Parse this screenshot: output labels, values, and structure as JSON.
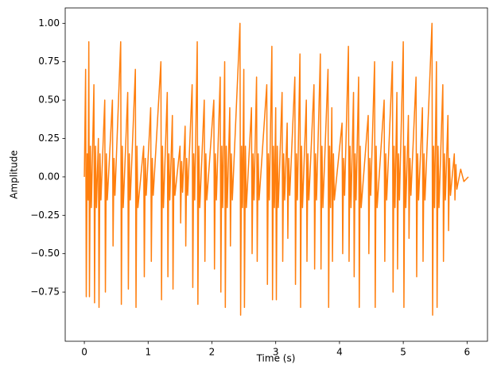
{
  "chart_data": {
    "type": "line",
    "xlabel": "Time (s)",
    "ylabel": "Amplitude",
    "x": [
      0,
      0.02,
      0.03,
      0.045,
      0.06,
      0.07,
      0.08,
      0.095,
      0.11,
      0.15,
      0.16,
      0.175,
      0.19,
      0.22,
      0.23,
      0.245,
      0.26,
      0.32,
      0.33,
      0.345,
      0.36,
      0.44,
      0.45,
      0.465,
      0.48,
      0.57,
      0.58,
      0.595,
      0.61,
      0.68,
      0.69,
      0.705,
      0.72,
      0.8,
      0.81,
      0.825,
      0.84,
      0.93,
      0.94,
      0.955,
      0.97,
      1.04,
      1.05,
      1.065,
      1.08,
      1.2,
      1.21,
      1.225,
      1.24,
      1.3,
      1.31,
      1.325,
      1.34,
      1.38,
      1.39,
      1.405,
      1.42,
      1.5,
      1.51,
      1.525,
      1.54,
      1.58,
      1.59,
      1.605,
      1.62,
      1.69,
      1.7,
      1.715,
      1.73,
      1.77,
      1.78,
      1.795,
      1.81,
      1.88,
      1.89,
      1.905,
      1.92,
      2.03,
      2.04,
      2.055,
      2.07,
      2.13,
      2.14,
      2.155,
      2.17,
      2.2,
      2.21,
      2.225,
      2.24,
      2.28,
      2.29,
      2.305,
      2.32,
      2.44,
      2.45,
      2.465,
      2.48,
      2.5,
      2.51,
      2.525,
      2.54,
      2.62,
      2.63,
      2.645,
      2.66,
      2.7,
      2.71,
      2.725,
      2.74,
      2.86,
      2.87,
      2.885,
      2.9,
      2.94,
      2.95,
      2.965,
      2.98,
      3.0,
      3.01,
      3.025,
      3.04,
      3.1,
      3.11,
      3.125,
      3.14,
      3.18,
      3.19,
      3.205,
      3.22,
      3.3,
      3.31,
      3.325,
      3.34,
      3.38,
      3.39,
      3.405,
      3.42,
      3.48,
      3.49,
      3.505,
      3.52,
      3.6,
      3.61,
      3.625,
      3.64,
      3.7,
      3.71,
      3.725,
      3.74,
      3.82,
      3.83,
      3.845,
      3.86,
      3.88,
      3.89,
      3.905,
      3.92,
      4.04,
      4.05,
      4.065,
      4.08,
      4.14,
      4.15,
      4.165,
      4.18,
      4.22,
      4.23,
      4.245,
      4.26,
      4.3,
      4.31,
      4.325,
      4.34,
      4.45,
      4.46,
      4.475,
      4.49,
      4.55,
      4.56,
      4.575,
      4.59,
      4.7,
      4.71,
      4.725,
      4.74,
      4.83,
      4.84,
      4.855,
      4.87,
      4.9,
      4.91,
      4.925,
      4.94,
      5.0,
      5.01,
      5.025,
      5.04,
      5.08,
      5.09,
      5.105,
      5.12,
      5.2,
      5.21,
      5.225,
      5.24,
      5.3,
      5.31,
      5.325,
      5.34,
      5.45,
      5.46,
      5.475,
      5.49,
      5.52,
      5.53,
      5.545,
      5.56,
      5.62,
      5.63,
      5.645,
      5.66,
      5.7,
      5.71,
      5.725,
      5.74,
      5.8,
      5.81,
      5.825,
      5.84,
      5.9,
      5.95,
      6.02
    ],
    "series": [
      {
        "color": "#ff7f0e",
        "values": [
          0,
          0.7,
          -0.78,
          0.15,
          -0.15,
          0.88,
          -0.78,
          0.2,
          -0.2,
          0.6,
          -0.82,
          0.2,
          -0.2,
          0.25,
          -0.85,
          0.15,
          -0.15,
          0.5,
          -0.75,
          0.15,
          -0.15,
          0.5,
          -0.45,
          0.12,
          -0.12,
          0.88,
          -0.83,
          0.2,
          -0.2,
          0.55,
          -0.73,
          0.15,
          -0.15,
          0.7,
          -0.85,
          0.2,
          -0.2,
          0.2,
          -0.65,
          0.12,
          -0.12,
          0.45,
          -0.55,
          0.12,
          -0.12,
          0.75,
          -0.8,
          0.2,
          -0.2,
          0.55,
          -0.65,
          0.15,
          -0.15,
          0.4,
          -0.73,
          0.12,
          -0.12,
          0.2,
          -0.3,
          0.1,
          -0.1,
          0.33,
          -0.45,
          0.12,
          -0.12,
          0.6,
          -0.72,
          0.15,
          -0.15,
          0.88,
          -0.83,
          0.2,
          -0.2,
          0.5,
          -0.55,
          0.15,
          -0.15,
          0.5,
          -0.6,
          0.15,
          -0.15,
          0.65,
          -0.75,
          0.2,
          -0.2,
          0.75,
          -0.85,
          0.2,
          -0.2,
          0.45,
          -0.45,
          0.15,
          -0.15,
          1.0,
          -0.9,
          0.2,
          -0.2,
          0.7,
          -0.85,
          0.2,
          -0.2,
          0.45,
          -0.5,
          0.15,
          -0.15,
          0.65,
          -0.55,
          0.15,
          -0.15,
          0.6,
          -0.7,
          0.15,
          -0.15,
          0.85,
          -0.8,
          0.2,
          -0.2,
          0.45,
          -0.8,
          0.2,
          -0.2,
          0.55,
          -0.55,
          0.15,
          -0.15,
          0.35,
          -0.4,
          0.12,
          -0.12,
          0.65,
          -0.7,
          0.15,
          -0.15,
          0.8,
          -0.85,
          0.2,
          -0.2,
          0.5,
          -0.55,
          0.15,
          -0.15,
          0.6,
          -0.6,
          0.15,
          -0.15,
          0.8,
          -0.6,
          0.2,
          -0.2,
          0.7,
          -0.85,
          0.2,
          -0.2,
          0.45,
          -0.55,
          0.15,
          -0.15,
          0.35,
          -0.5,
          0.12,
          -0.12,
          0.85,
          -0.55,
          0.2,
          -0.2,
          0.55,
          -0.65,
          0.15,
          -0.15,
          0.65,
          -0.85,
          0.2,
          -0.2,
          0.4,
          -0.5,
          0.12,
          -0.12,
          0.75,
          -0.85,
          0.2,
          -0.2,
          0.5,
          -0.55,
          0.15,
          -0.15,
          0.75,
          -0.75,
          0.2,
          -0.2,
          0.55,
          -0.6,
          0.15,
          -0.15,
          0.88,
          -0.85,
          0.2,
          -0.2,
          0.4,
          -0.4,
          0.12,
          -0.12,
          0.65,
          -0.65,
          0.15,
          -0.15,
          0.45,
          -0.55,
          0.15,
          -0.15,
          1.0,
          -0.9,
          0.2,
          -0.2,
          0.75,
          -0.85,
          0.2,
          -0.2,
          0.6,
          -0.55,
          0.15,
          -0.15,
          0.4,
          -0.35,
          0.12,
          -0.12,
          0.15,
          -0.15,
          0.08,
          -0.08,
          0.05,
          -0.03,
          0
        ]
      }
    ],
    "xlim": [
      -0.3,
      6.32
    ],
    "ylim": [
      -1.07,
      1.1
    ],
    "xticks": [
      0,
      1,
      2,
      3,
      4,
      5,
      6
    ],
    "yticks": [
      {
        "value": -0.75,
        "label": "−0.75"
      },
      {
        "value": -0.5,
        "label": "−0.50"
      },
      {
        "value": -0.25,
        "label": "−0.25"
      },
      {
        "value": 0,
        "label": "0.00"
      },
      {
        "value": 0.25,
        "label": "0.25"
      },
      {
        "value": 0.5,
        "label": "0.50"
      },
      {
        "value": 0.75,
        "label": "0.75"
      },
      {
        "value": 1,
        "label": "1.00"
      }
    ]
  }
}
